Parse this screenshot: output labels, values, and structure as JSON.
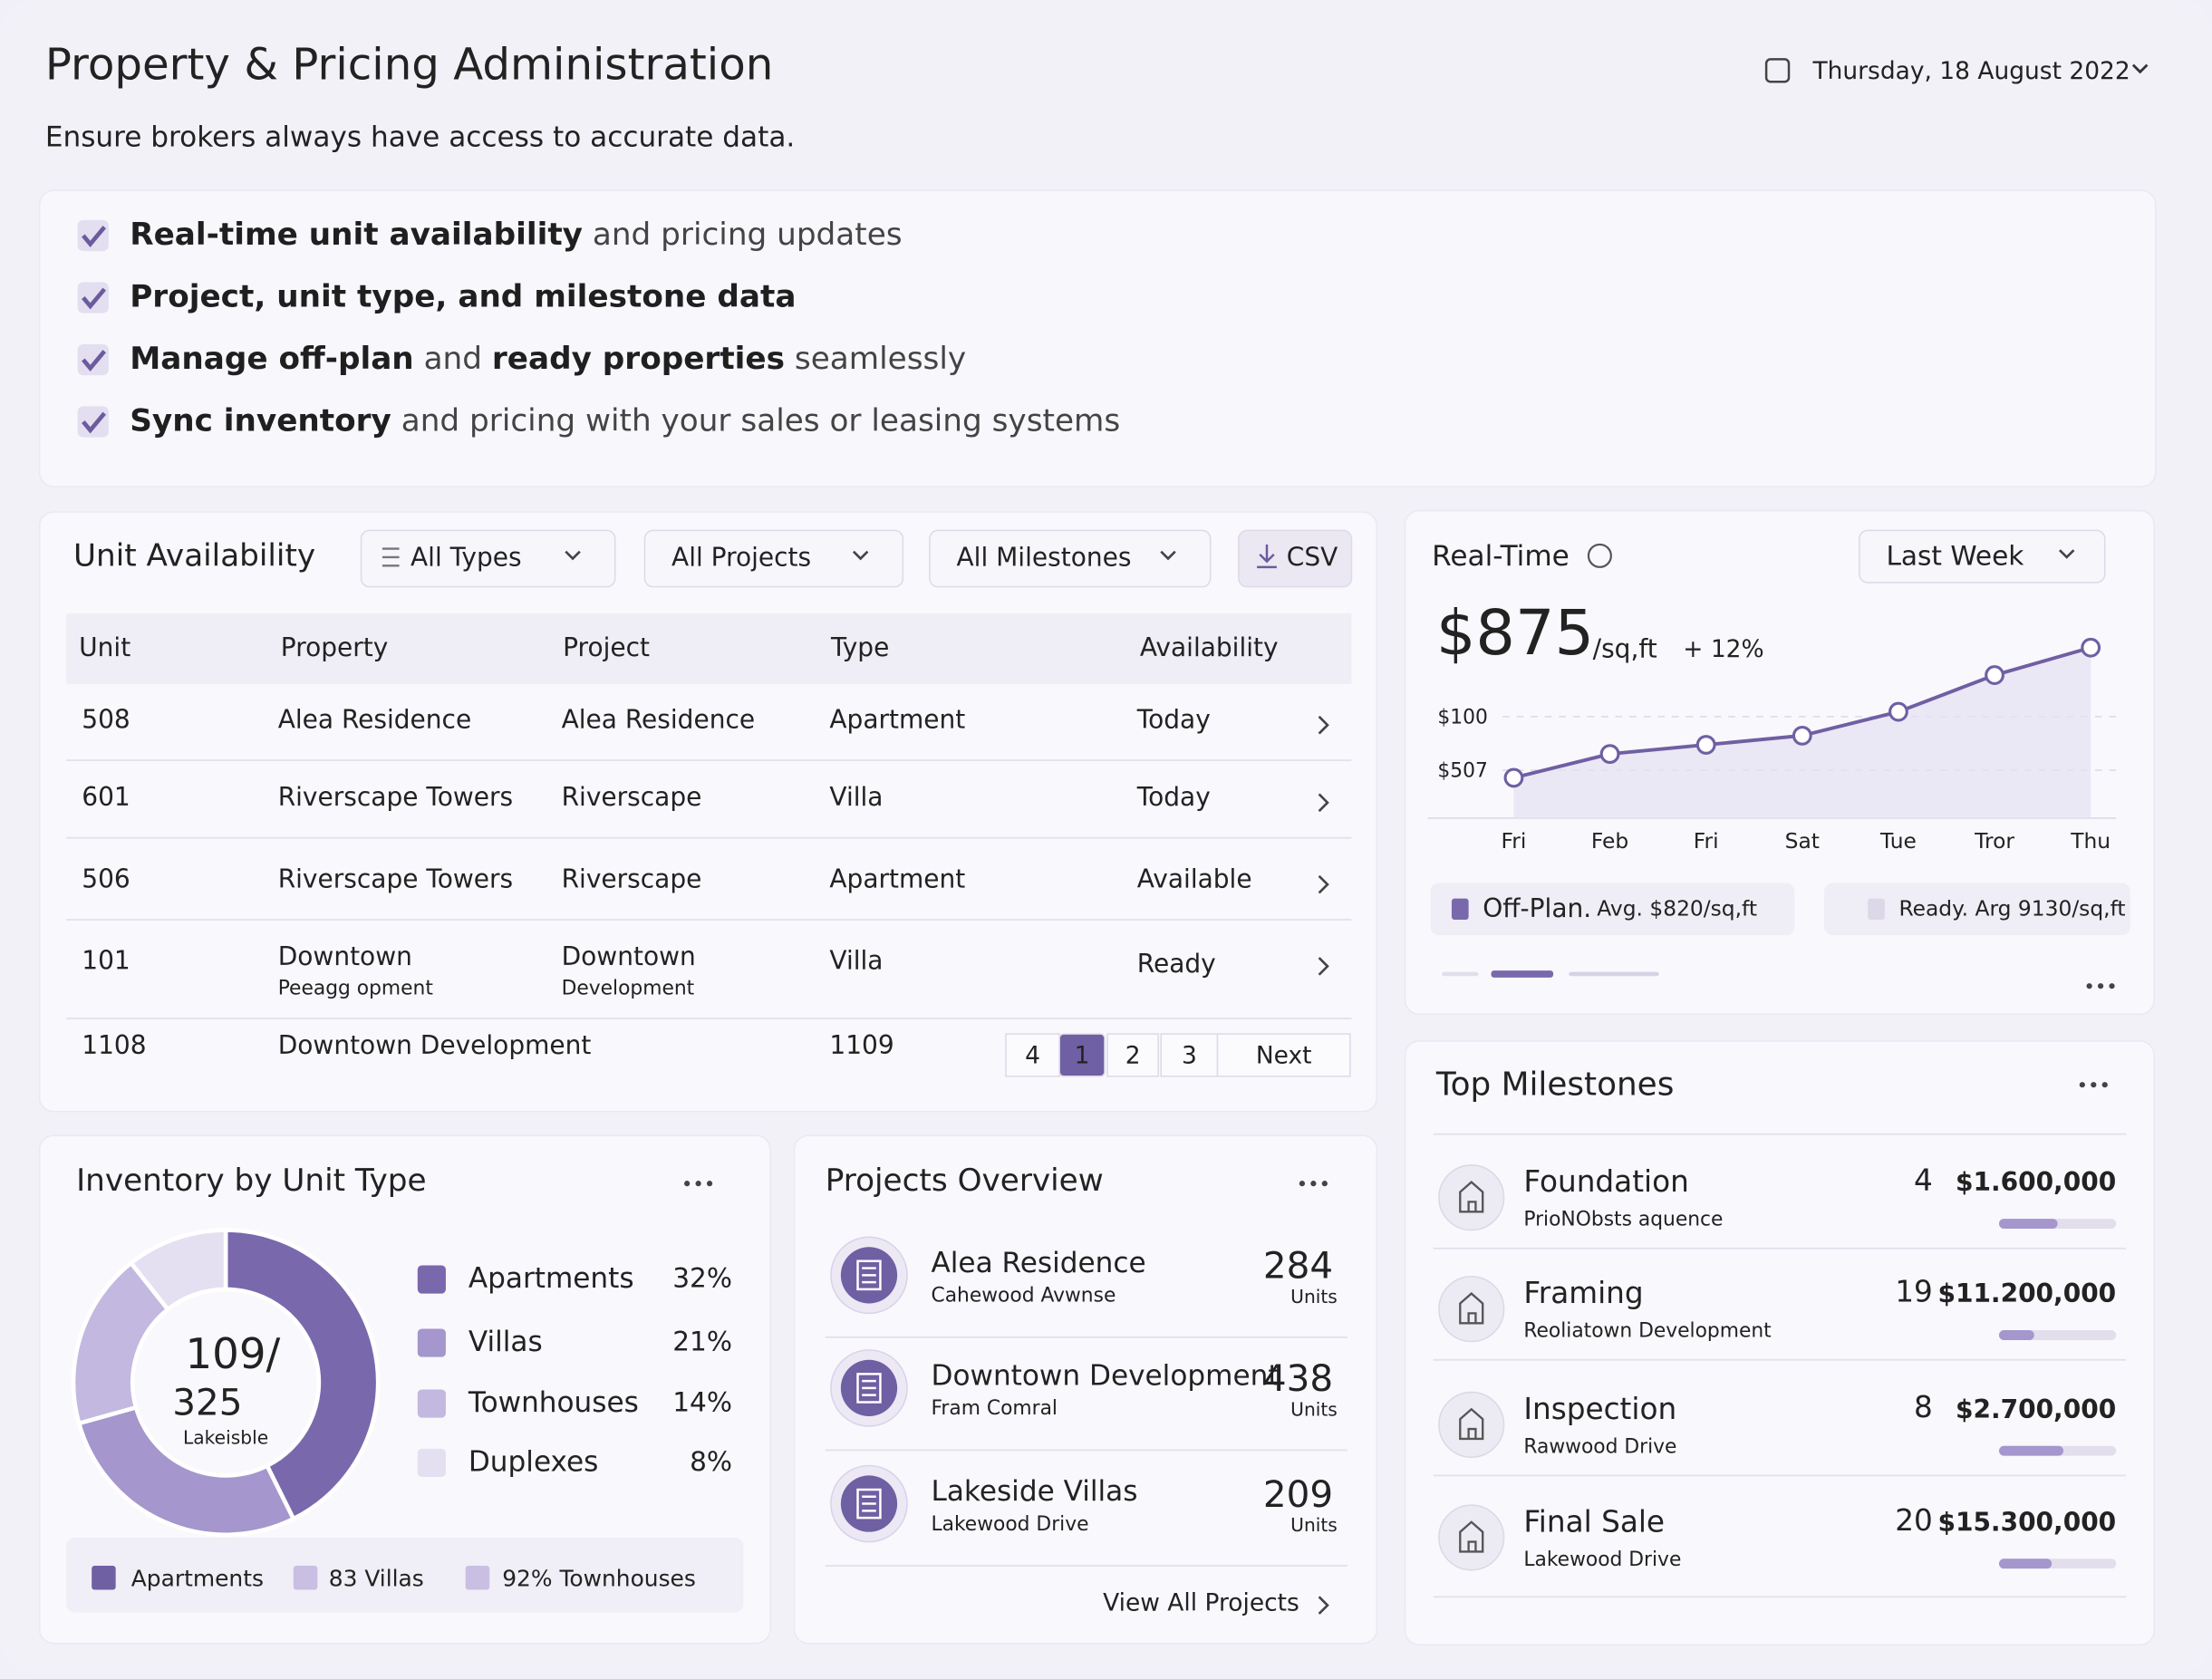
{
  "header": {
    "title": "Property & Pricing Administration",
    "subtitle": "Ensure brokers always have access to accurate data.",
    "date": "Thursday, 18 August 2022"
  },
  "features": [
    [
      {
        "text": "Real-time unit availability",
        "bold": true
      },
      {
        "text": " and pricing updates",
        "bold": false
      }
    ],
    [
      {
        "text": "Project, unit type, and milestone data",
        "bold": true
      }
    ],
    [
      {
        "text": "Manage off-plan",
        "bold": true
      },
      {
        "text": " and ",
        "bold": false
      },
      {
        "text": "ready properties",
        "bold": true
      },
      {
        "text": " seamlessly",
        "bold": false
      }
    ],
    [
      {
        "text": "Sync inventory",
        "bold": true
      },
      {
        "text": " and pricing with your sales or leasing systems",
        "bold": false
      }
    ]
  ],
  "unit_availability": {
    "title": "Unit Availability",
    "filters": [
      "All Types",
      "All Projects",
      "All Milestones"
    ],
    "export": "CSV",
    "columns": [
      "Unit",
      "Property",
      "Project",
      "Type",
      "Availability"
    ],
    "rows": [
      {
        "unit": "508",
        "property": "Alea Residence",
        "project": "Alea Residence",
        "type": "Apartment",
        "availability": "Today"
      },
      {
        "unit": "601",
        "property": "Riverscape Towers",
        "project": "Riverscape",
        "type": "Villa",
        "availability": "Today"
      },
      {
        "unit": "506",
        "property": "Riverscape Towers",
        "project": "Riverscape",
        "type": "Apartment",
        "availability": "Available"
      },
      {
        "unit": "101",
        "property": "Downtown",
        "property_sub": "Peeagg opment",
        "project": "Downtown",
        "project_sub": "Development",
        "type": "Villa",
        "availability": "Ready"
      },
      {
        "unit": "1108",
        "property": "Downtown Development",
        "type": "1109"
      }
    ],
    "pagination": [
      "4",
      "1",
      "2",
      "3",
      "Next"
    ]
  },
  "real_time": {
    "title": "Real-Time",
    "period": "Last Week",
    "price": "$875",
    "price_unit": "/sq,ft",
    "change": "+ 12%",
    "chart": {
      "type": "line",
      "categories": [
        "Fri",
        "Feb",
        "Fri",
        "Sat",
        "Tue",
        "Tror",
        "Thu"
      ],
      "values": [
        22,
        35,
        40,
        45,
        58,
        78,
        93
      ],
      "ylim": [
        0,
        100
      ],
      "y_labels": [
        "$100",
        "$507"
      ],
      "color": "#6f5fa3"
    },
    "legend": [
      {
        "name": "Off-Plan.",
        "detail": "Avg. $820/sq,ft"
      },
      {
        "name": "Ready.",
        "detail": "Arg 9130/sq,ft"
      }
    ]
  },
  "inventory": {
    "title": "Inventory by Unit Type",
    "center": [
      "109/",
      "325",
      "Lakeisble"
    ],
    "chart": {
      "type": "pie",
      "series": [
        {
          "name": "Apartments",
          "value": 32,
          "label": "32%",
          "color": "#7a68ad"
        },
        {
          "name": "Villas",
          "value": 21,
          "label": "21%",
          "color": "#a596cd"
        },
        {
          "name": "Townhouses",
          "value": 14,
          "label": "14%",
          "color": "#c3b8df"
        },
        {
          "name": "Duplexes",
          "value": 8,
          "label": "8%",
          "color": "#e5e0f1"
        }
      ]
    },
    "footer_legend": [
      {
        "text": "Apartments",
        "color": "#6f5fa3"
      },
      {
        "text": "83 Villas",
        "color": "#c9bfe2"
      },
      {
        "text": "92% Townhouses",
        "color": "#c9bfe2"
      }
    ]
  },
  "projects": {
    "title": "Projects Overview",
    "items": [
      {
        "name": "Alea Residence",
        "address": "Cahewood Avwnse",
        "count": "284",
        "unit": "Units"
      },
      {
        "name": "Downtown Development",
        "address": "Fram Comral",
        "count": "438",
        "unit": "Units"
      },
      {
        "name": "Lakeside Villas",
        "address": "Lakewood Drive",
        "count": "209",
        "unit": "Units"
      }
    ],
    "link": "View All Projects"
  },
  "milestones": {
    "title": "Top Milestones",
    "items": [
      {
        "name": "Foundation",
        "sub": "PrioNObsts aquence",
        "count": "4",
        "amount": "$1.600,000",
        "progress": 50
      },
      {
        "name": "Framing",
        "sub": "Reoliatown Development",
        "count": "19",
        "amount": "$11.200,000",
        "progress": 30
      },
      {
        "name": "Inspection",
        "sub": "Rawwood Drive",
        "count": "8",
        "amount": "$2.700,000",
        "progress": 55
      },
      {
        "name": "Final Sale",
        "sub": "Lakewood Drive",
        "count": "20",
        "amount": "$15.300,000",
        "progress": 45
      }
    ]
  }
}
